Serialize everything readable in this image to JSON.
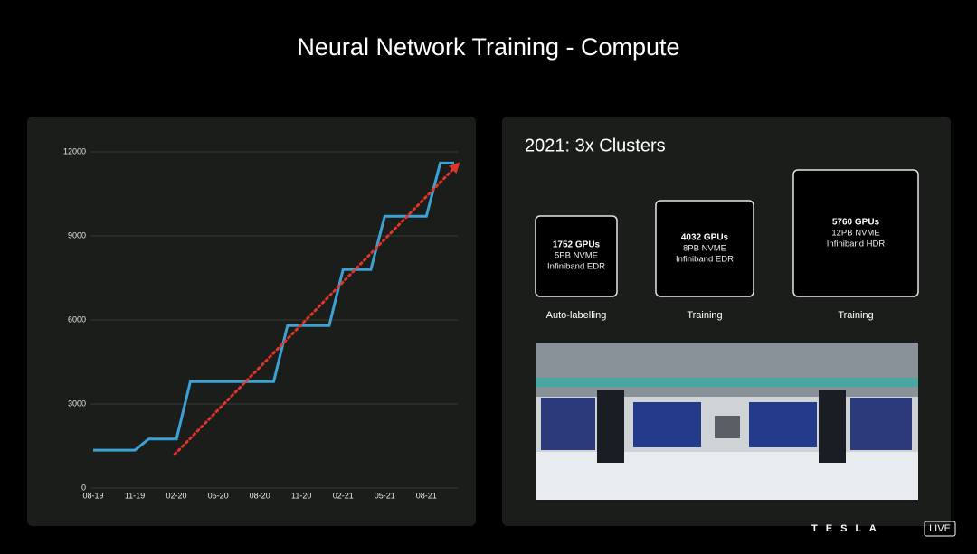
{
  "title": "Neural Network Training - Compute",
  "chart_data": {
    "type": "line",
    "x": [
      "2019-08",
      "2019-11",
      "2019-12",
      "2020-02",
      "2020-03",
      "2020-09",
      "2020-10",
      "2021-01",
      "2021-02",
      "2021-04",
      "2021-05",
      "2021-08",
      "2021-09",
      "2021-10"
    ],
    "values": [
      1350,
      1350,
      1750,
      1750,
      3800,
      3800,
      5800,
      5800,
      7800,
      7800,
      9700,
      9700,
      11600,
      11600
    ],
    "color": "#3aa3d4",
    "xlim": [
      "2019-08",
      "2021-10"
    ],
    "xticks": [
      {
        "value": "2019-08",
        "label": "08-19"
      },
      {
        "value": "2019-11",
        "label": "11-19"
      },
      {
        "value": "2020-02",
        "label": "02-20"
      },
      {
        "value": "2020-05",
        "label": "05-20"
      },
      {
        "value": "2020-08",
        "label": "08-20"
      },
      {
        "value": "2020-11",
        "label": "11-20"
      },
      {
        "value": "2021-02",
        "label": "02-21"
      },
      {
        "value": "2021-05",
        "label": "05-21"
      },
      {
        "value": "2021-08",
        "label": "08-21"
      }
    ],
    "ylim": [
      0,
      12000
    ],
    "yticks": [
      0,
      3000,
      6000,
      9000,
      12000
    ],
    "grid": true,
    "trend": {
      "x": [
        "2020-02",
        "2021-10"
      ],
      "values": [
        1200,
        11550
      ],
      "color": "#e0352b"
    }
  },
  "clusters": {
    "title": "2021: 3x Clusters",
    "items": [
      {
        "lines": [
          "1752 GPUs",
          "5PB NVME",
          "Infiniband EDR"
        ],
        "label": "Auto-labelling"
      },
      {
        "lines": [
          "4032 GPUs",
          "8PB NVME",
          "Infiniband EDR"
        ],
        "label": "Training"
      },
      {
        "lines": [
          "5760 GPUs",
          "12PB NVME",
          "Infiniband HDR"
        ],
        "label": "Training"
      }
    ]
  },
  "logo": {
    "brand": "T E S L A",
    "badge": "LIVE"
  }
}
